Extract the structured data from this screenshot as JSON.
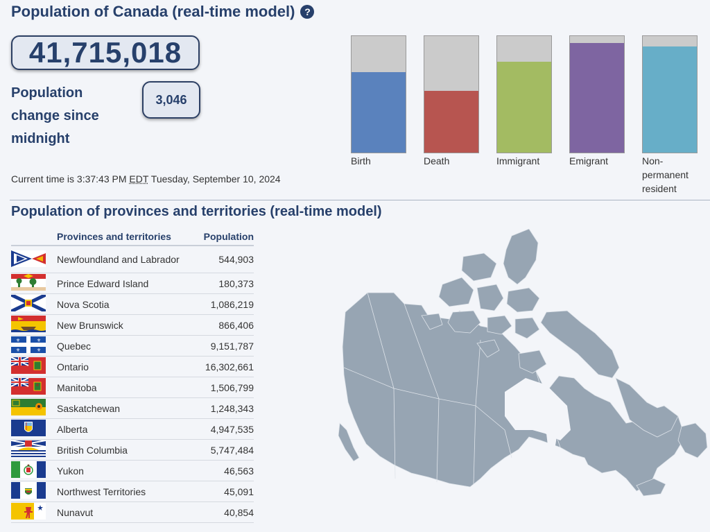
{
  "page_title": "Population of Canada (real-time model)",
  "population_total": "41,715,018",
  "change_label": "Population change since midnight",
  "change_value": "3,046",
  "current_time": {
    "prefix": "Current time is 3:37:43 PM",
    "tz": "EDT",
    "date": "Tuesday, September 10, 2024"
  },
  "components": [
    {
      "label": "Birth",
      "color": "#5a82bd",
      "fill_fraction": 0.69
    },
    {
      "label": "Death",
      "color": "#b75550",
      "fill_fraction": 0.53
    },
    {
      "label": "Immigrant",
      "color": "#a3bb62",
      "fill_fraction": 0.78
    },
    {
      "label": "Emigrant",
      "color": "#7e65a1",
      "fill_fraction": 0.94
    },
    {
      "label": "Non-permanent resident",
      "color": "#67aec8",
      "fill_fraction": 0.91
    }
  ],
  "section_title": "Population of provinces and territories (real-time model)",
  "table": {
    "headers": [
      "Provinces and territories",
      "Population"
    ],
    "rows": [
      {
        "name": "Newfoundland and Labrador",
        "population": "544,903",
        "flag": "flag-nl-icon"
      },
      {
        "name": "Prince Edward Island",
        "population": "180,373",
        "flag": "flag-pe-icon"
      },
      {
        "name": "Nova Scotia",
        "population": "1,086,219",
        "flag": "flag-ns-icon"
      },
      {
        "name": "New Brunswick",
        "population": "866,406",
        "flag": "flag-nb-icon"
      },
      {
        "name": "Quebec",
        "population": "9,151,787",
        "flag": "flag-qc-icon"
      },
      {
        "name": "Ontario",
        "population": "16,302,661",
        "flag": "flag-on-icon"
      },
      {
        "name": "Manitoba",
        "population": "1,506,799",
        "flag": "flag-mb-icon"
      },
      {
        "name": "Saskatchewan",
        "population": "1,248,343",
        "flag": "flag-sk-icon"
      },
      {
        "name": "Alberta",
        "population": "4,947,535",
        "flag": "flag-ab-icon"
      },
      {
        "name": "British Columbia",
        "population": "5,747,484",
        "flag": "flag-bc-icon"
      },
      {
        "name": "Yukon",
        "population": "46,563",
        "flag": "flag-yt-icon"
      },
      {
        "name": "Northwest Territories",
        "population": "45,091",
        "flag": "flag-nt-icon"
      },
      {
        "name": "Nunavut",
        "population": "40,854",
        "flag": "flag-nu-icon"
      }
    ]
  },
  "map_color": "#97a5b3"
}
